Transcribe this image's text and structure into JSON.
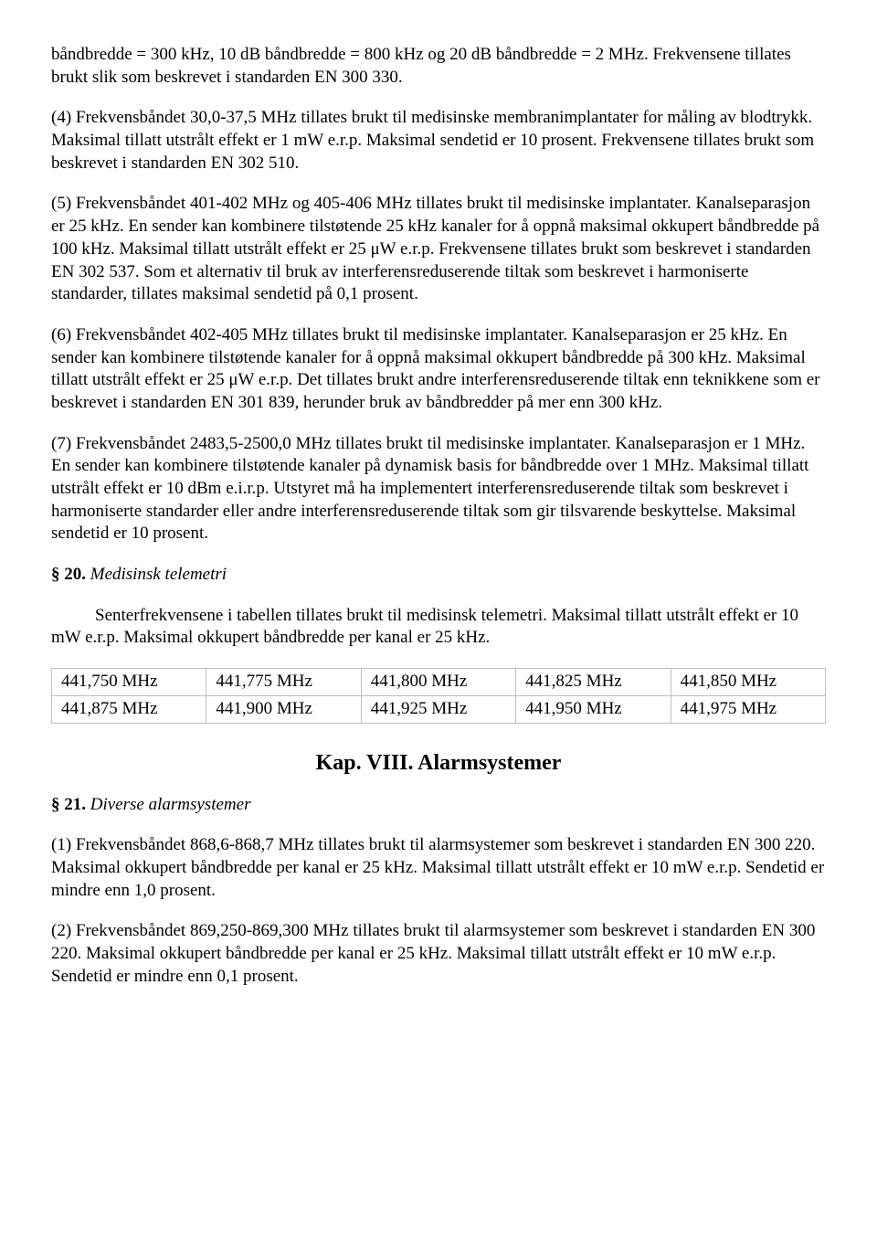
{
  "p1": "båndbredde = 300 kHz, 10 dB båndbredde = 800 kHz og 20 dB båndbredde = 2 MHz. Frekvensene tillates brukt slik som beskrevet i standarden EN 300 330.",
  "p2": "(4) Frekvensbåndet 30,0-37,5 MHz tillates brukt til medisinske membranimplantater for måling av blodtrykk. Maksimal tillatt utstrålt effekt er 1 mW e.r.p. Maksimal sendetid er 10 prosent. Frekvensene tillates brukt som beskrevet i standarden EN 302 510.",
  "p3": "(5) Frekvensbåndet 401-402 MHz og 405-406 MHz tillates brukt til medisinske implantater. Kanalseparasjon er 25 kHz. En sender kan kombinere tilstøtende 25 kHz kanaler for å oppnå maksimal okkupert båndbredde på 100 kHz. Maksimal tillatt utstrålt effekt er 25 μW e.r.p. Frekvensene tillates brukt som beskrevet i standarden EN 302 537. Som et alternativ til bruk av interferensreduserende tiltak som beskrevet i harmoniserte standarder, tillates maksimal sendetid på 0,1 prosent.",
  "p4": "(6) Frekvensbåndet 402-405 MHz tillates brukt til medisinske implantater. Kanalseparasjon er 25 kHz. En sender kan kombinere tilstøtende kanaler for å oppnå maksimal okkupert båndbredde på 300 kHz. Maksimal tillatt utstrålt effekt er 25 μW e.r.p. Det tillates brukt andre interferensreduserende tiltak enn teknikkene som er beskrevet i standarden EN 301 839, herunder bruk av båndbredder på mer enn 300 kHz.",
  "p5": "(7) Frekvensbåndet 2483,5-2500,0 MHz tillates brukt til medisinske implantater. Kanalseparasjon er 1 MHz. En sender kan kombinere tilstøtende kanaler på dynamisk basis for båndbredde over 1 MHz. Maksimal tillatt utstrålt effekt er 10 dBm e.i.r.p. Utstyret må ha implementert interferensreduserende tiltak som beskrevet i harmoniserte standarder eller andre interferensreduserende tiltak som gir tilsvarende beskyttelse. Maksimal sendetid er 10 prosent.",
  "sec20": {
    "label": "§ 20.",
    "title": " Medisinsk telemetri",
    "p1": "Senterfrekvensene i tabellen tillates brukt til medisinsk telemetri. Maksimal tillatt utstrålt effekt er 10 mW e.r.p. Maksimal okkupert båndbredde per kanal er 25 kHz."
  },
  "table": {
    "rows": [
      [
        "441,750 MHz",
        "441,775 MHz",
        "441,800 MHz",
        "441,825 MHz",
        "441,850 MHz"
      ],
      [
        "441,875 MHz",
        "441,900 MHz",
        "441,925 MHz",
        "441,950 MHz",
        "441,975 MHz"
      ]
    ]
  },
  "chapter": "Kap. VIII. Alarmsystemer",
  "sec21": {
    "label": "§ 21.",
    "title": " Diverse alarmsystemer",
    "p1": "(1) Frekvensbåndet 868,6-868,7 MHz tillates brukt til alarmsystemer som beskrevet i standarden EN 300 220. Maksimal okkupert båndbredde per kanal er 25 kHz. Maksimal tillatt utstrålt effekt er 10 mW e.r.p. Sendetid er mindre enn 1,0 prosent.",
    "p2": "(2) Frekvensbåndet 869,250-869,300 MHz tillates brukt til alarmsystemer som beskrevet i standarden EN 300 220. Maksimal okkupert båndbredde per kanal er 25 kHz. Maksimal tillatt utstrålt effekt er 10 mW e.r.p. Sendetid er mindre enn 0,1 prosent."
  }
}
